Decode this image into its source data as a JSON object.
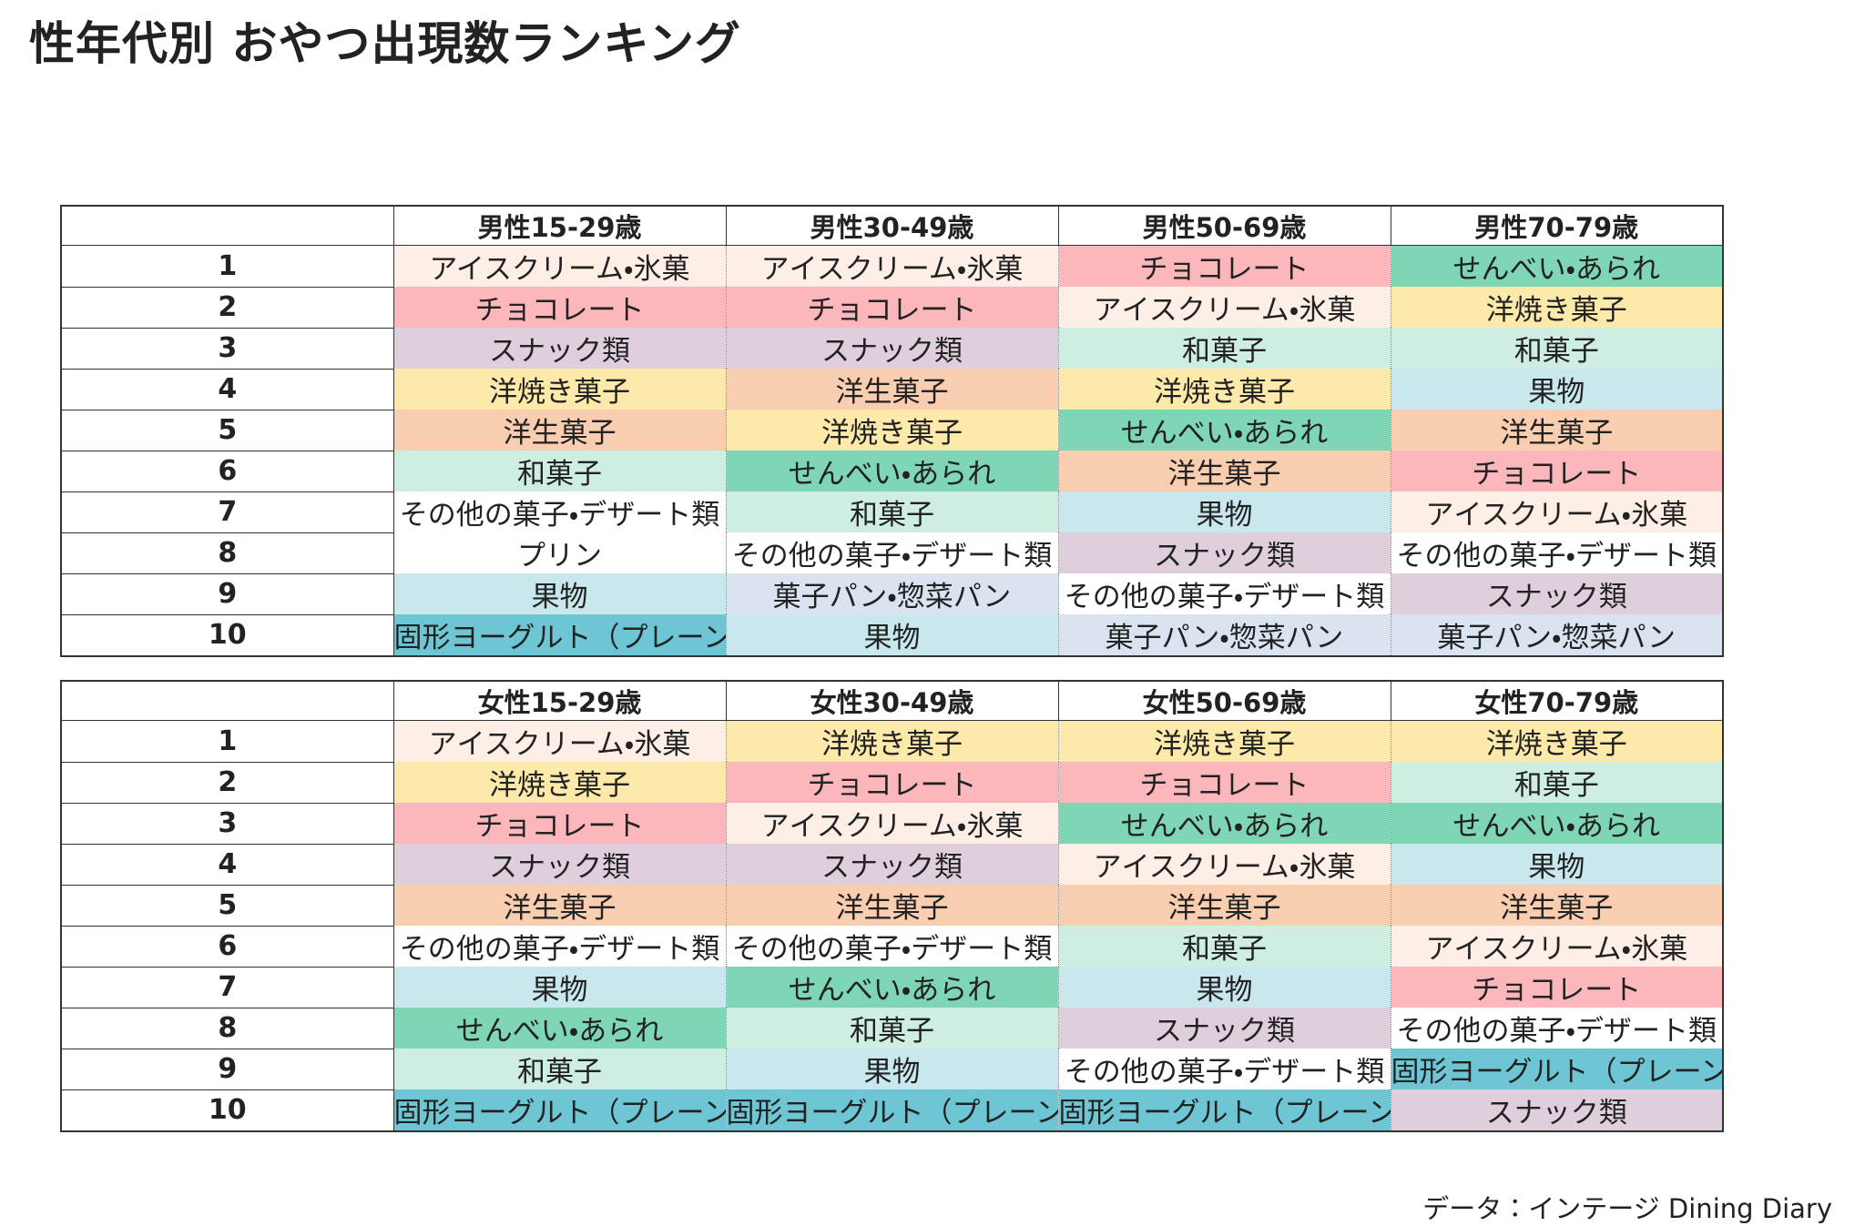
{
  "header": {
    "title": "性年代別 おやつ出現数ランキング"
  },
  "tables": [
    {
      "columns": [
        "男性15-29歳",
        "男性30-49歳",
        "男性50-69歳",
        "男性70-79歳"
      ],
      "rows": [
        {
          "rank": "1",
          "cells": [
            {
              "text": "アイスクリーム・氷菓",
              "color": "#fdeee6"
            },
            {
              "text": "アイスクリーム・氷菓",
              "color": "#fdeee6"
            },
            {
              "text": "チョコレート",
              "color": "#fbb7bb"
            },
            {
              "text": "せんべい・あられ",
              "color": "#7fd6b5"
            }
          ]
        },
        {
          "rank": "2",
          "cells": [
            {
              "text": "チョコレート",
              "color": "#fbb7bb"
            },
            {
              "text": "チョコレート",
              "color": "#fbb7bb"
            },
            {
              "text": "アイスクリーム・氷菓",
              "color": "#fdeee6"
            },
            {
              "text": "洋焼き菓子",
              "color": "#fde9a9"
            }
          ]
        },
        {
          "rank": "3",
          "cells": [
            {
              "text": "スナック類",
              "color": "#dfcfdd"
            },
            {
              "text": "スナック類",
              "color": "#dfcfdd"
            },
            {
              "text": "和菓子",
              "color": "#cdeee0"
            },
            {
              "text": "和菓子",
              "color": "#cdeee0"
            }
          ]
        },
        {
          "rank": "4",
          "cells": [
            {
              "text": "洋焼き菓子",
              "color": "#fde9a9"
            },
            {
              "text": "洋生菓子",
              "color": "#f9cdb0"
            },
            {
              "text": "洋焼き菓子",
              "color": "#fde9a9"
            },
            {
              "text": "果物",
              "color": "#c8e8ee"
            }
          ]
        },
        {
          "rank": "5",
          "cells": [
            {
              "text": "洋生菓子",
              "color": "#f9cdb0"
            },
            {
              "text": "洋焼き菓子",
              "color": "#fde9a9"
            },
            {
              "text": "せんべい・あられ",
              "color": "#7fd6b5"
            },
            {
              "text": "洋生菓子",
              "color": "#f9cdb0"
            }
          ]
        },
        {
          "rank": "6",
          "cells": [
            {
              "text": "和菓子",
              "color": "#cdeee0"
            },
            {
              "text": "せんべい・あられ",
              "color": "#7fd6b5"
            },
            {
              "text": "洋生菓子",
              "color": "#f9cdb0"
            },
            {
              "text": "チョコレート",
              "color": "#fbb7bb"
            }
          ]
        },
        {
          "rank": "7",
          "cells": [
            {
              "text": "その他の菓子・デザート類",
              "color": "#ffffff"
            },
            {
              "text": "和菓子",
              "color": "#cdeee0"
            },
            {
              "text": "果物",
              "color": "#c8e8ee"
            },
            {
              "text": "アイスクリーム・氷菓",
              "color": "#fdeee6"
            }
          ]
        },
        {
          "rank": "8",
          "cells": [
            {
              "text": "プリン",
              "color": "#ffffff"
            },
            {
              "text": "その他の菓子・デザート類",
              "color": "#ffffff"
            },
            {
              "text": "スナック類",
              "color": "#dfcfdd"
            },
            {
              "text": "その他の菓子・デザート類",
              "color": "#ffffff"
            }
          ]
        },
        {
          "rank": "9",
          "cells": [
            {
              "text": "果物",
              "color": "#c8e8ee"
            },
            {
              "text": "菓子パン・惣菜パン",
              "color": "#dae4f1"
            },
            {
              "text": "その他の菓子・デザート類",
              "color": "#ffffff"
            },
            {
              "text": "スナック類",
              "color": "#dfcfdd"
            }
          ]
        },
        {
          "rank": "10",
          "cells": [
            {
              "text": "固形ヨーグルト（プレーン）",
              "color": "#6ec6d5"
            },
            {
              "text": "果物",
              "color": "#c8e8ee"
            },
            {
              "text": "菓子パン・惣菜パン",
              "color": "#dae4f1"
            },
            {
              "text": "菓子パン・惣菜パン",
              "color": "#dae4f1"
            }
          ]
        }
      ]
    },
    {
      "columns": [
        "女性15-29歳",
        "女性30-49歳",
        "女性50-69歳",
        "女性70-79歳"
      ],
      "rows": [
        {
          "rank": "1",
          "cells": [
            {
              "text": "アイスクリーム・氷菓",
              "color": "#fdeee6"
            },
            {
              "text": "洋焼き菓子",
              "color": "#fde9a9"
            },
            {
              "text": "洋焼き菓子",
              "color": "#fde9a9"
            },
            {
              "text": "洋焼き菓子",
              "color": "#fde9a9"
            }
          ]
        },
        {
          "rank": "2",
          "cells": [
            {
              "text": "洋焼き菓子",
              "color": "#fde9a9"
            },
            {
              "text": "チョコレート",
              "color": "#fbb7bb"
            },
            {
              "text": "チョコレート",
              "color": "#fbb7bb"
            },
            {
              "text": "和菓子",
              "color": "#cdeee0"
            }
          ]
        },
        {
          "rank": "3",
          "cells": [
            {
              "text": "チョコレート",
              "color": "#fbb7bb"
            },
            {
              "text": "アイスクリーム・氷菓",
              "color": "#fdeee6"
            },
            {
              "text": "せんべい・あられ",
              "color": "#7fd6b5"
            },
            {
              "text": "せんべい・あられ",
              "color": "#7fd6b5"
            }
          ]
        },
        {
          "rank": "4",
          "cells": [
            {
              "text": "スナック類",
              "color": "#dfcfdd"
            },
            {
              "text": "スナック類",
              "color": "#dfcfdd"
            },
            {
              "text": "アイスクリーム・氷菓",
              "color": "#fdeee6"
            },
            {
              "text": "果物",
              "color": "#c8e8ee"
            }
          ]
        },
        {
          "rank": "5",
          "cells": [
            {
              "text": "洋生菓子",
              "color": "#f9cdb0"
            },
            {
              "text": "洋生菓子",
              "color": "#f9cdb0"
            },
            {
              "text": "洋生菓子",
              "color": "#f9cdb0"
            },
            {
              "text": "洋生菓子",
              "color": "#f9cdb0"
            }
          ]
        },
        {
          "rank": "6",
          "cells": [
            {
              "text": "その他の菓子・デザート類",
              "color": "#ffffff"
            },
            {
              "text": "その他の菓子・デザート類",
              "color": "#ffffff"
            },
            {
              "text": "和菓子",
              "color": "#cdeee0"
            },
            {
              "text": "アイスクリーム・氷菓",
              "color": "#fdeee6"
            }
          ]
        },
        {
          "rank": "7",
          "cells": [
            {
              "text": "果物",
              "color": "#c8e8ee"
            },
            {
              "text": "せんべい・あられ",
              "color": "#7fd6b5"
            },
            {
              "text": "果物",
              "color": "#c8e8ee"
            },
            {
              "text": "チョコレート",
              "color": "#fbb7bb"
            }
          ]
        },
        {
          "rank": "8",
          "cells": [
            {
              "text": "せんべい・あられ",
              "color": "#7fd6b5"
            },
            {
              "text": "和菓子",
              "color": "#cdeee0"
            },
            {
              "text": "スナック類",
              "color": "#dfcfdd"
            },
            {
              "text": "その他の菓子・デザート類",
              "color": "#ffffff"
            }
          ]
        },
        {
          "rank": "9",
          "cells": [
            {
              "text": "和菓子",
              "color": "#cdeee0"
            },
            {
              "text": "果物",
              "color": "#c8e8ee"
            },
            {
              "text": "その他の菓子・デザート類",
              "color": "#ffffff"
            },
            {
              "text": "固形ヨーグルト（プレーン）",
              "color": "#6ec6d5"
            }
          ]
        },
        {
          "rank": "10",
          "cells": [
            {
              "text": "固形ヨーグルト（プレーン）",
              "color": "#6ec6d5"
            },
            {
              "text": "固形ヨーグルト（プレーン）",
              "color": "#6ec6d5"
            },
            {
              "text": "固形ヨーグルト（プレーン）",
              "color": "#6ec6d5"
            },
            {
              "text": "スナック類",
              "color": "#dfcfdd"
            }
          ]
        }
      ]
    }
  ],
  "footer": {
    "source": "データ：インテージ Dining Diary"
  }
}
